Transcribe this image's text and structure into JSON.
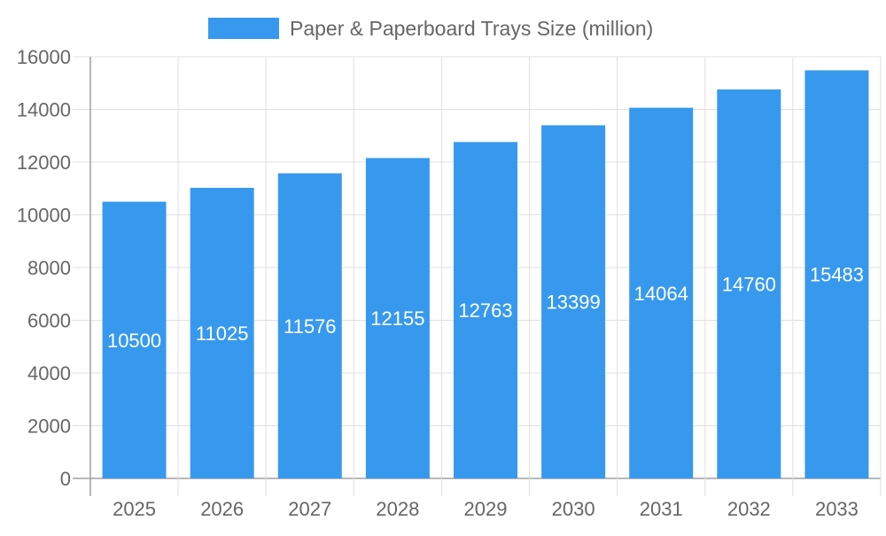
{
  "chart_data": {
    "type": "bar",
    "title": "",
    "xlabel": "",
    "ylabel": "",
    "categories": [
      "2025",
      "2026",
      "2027",
      "2028",
      "2029",
      "2030",
      "2031",
      "2032",
      "2033"
    ],
    "series": [
      {
        "name": "Paper & Paperboard Trays Size (million)",
        "values": [
          10500,
          11025,
          11576,
          12155,
          12763,
          13399,
          14064,
          14760,
          15483
        ],
        "color": "#3799ee"
      }
    ],
    "ylim": [
      0,
      16000
    ],
    "yticks": [
      0,
      2000,
      4000,
      6000,
      8000,
      10000,
      12000,
      14000,
      16000
    ],
    "grid": true,
    "legend": "top-center",
    "data_labels": true,
    "colors": {
      "grid": "#e0e0e0",
      "axis": "#a0a0a0",
      "tick_text": "#666666",
      "label_text": "#ffffff"
    }
  }
}
